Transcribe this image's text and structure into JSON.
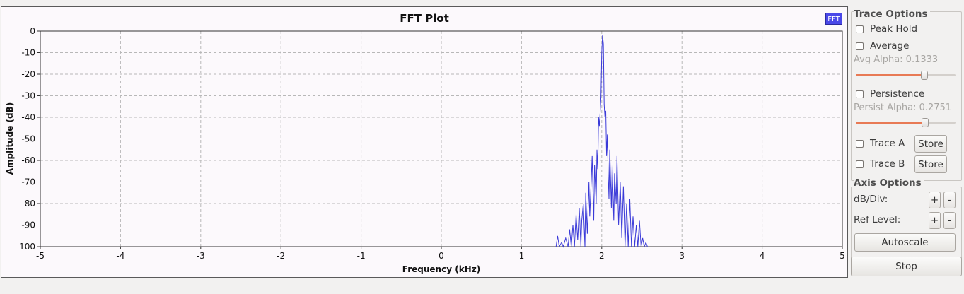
{
  "plot": {
    "title": "FFT Plot",
    "legend_chip": "FFT",
    "trace_color": "#3a3ad8",
    "chart_data": {
      "type": "line",
      "title": "FFT Plot",
      "xlabel": "Frequency (kHz)",
      "ylabel": "Amplitude (dB)",
      "xlim": [
        -5,
        5
      ],
      "ylim": [
        -100,
        0
      ],
      "x_ticks": [
        "-5",
        "-4",
        "-3",
        "-2",
        "-1",
        "0",
        "1",
        "2",
        "3",
        "4",
        "5"
      ],
      "y_ticks": [
        "0",
        "-10",
        "-20",
        "-30",
        "-40",
        "-50",
        "-60",
        "-70",
        "-80",
        "-90",
        "-100"
      ],
      "grid": true,
      "series": [
        {
          "name": "FFT",
          "x": [
            1.43,
            1.45,
            1.47,
            1.5,
            1.52,
            1.55,
            1.58,
            1.6,
            1.62,
            1.64,
            1.66,
            1.68,
            1.7,
            1.72,
            1.74,
            1.75,
            1.77,
            1.79,
            1.8,
            1.82,
            1.84,
            1.85,
            1.87,
            1.88,
            1.9,
            1.91,
            1.93,
            1.94,
            1.95,
            1.96,
            1.97,
            1.98,
            1.99,
            2.0,
            2.01,
            2.02,
            2.03,
            2.04,
            2.05,
            2.06,
            2.07,
            2.08,
            2.09,
            2.1,
            2.12,
            2.13,
            2.15,
            2.16,
            2.18,
            2.19,
            2.21,
            2.23,
            2.25,
            2.27,
            2.29,
            2.31,
            2.33,
            2.35,
            2.37,
            2.39,
            2.41,
            2.43,
            2.45,
            2.47,
            2.49,
            2.51,
            2.53,
            2.55,
            2.57
          ],
          "y": [
            -100,
            -95,
            -100,
            -98,
            -100,
            -96,
            -100,
            -92,
            -100,
            -90,
            -100,
            -85,
            -97,
            -82,
            -100,
            -88,
            -80,
            -100,
            -75,
            -94,
            -70,
            -86,
            -68,
            -58,
            -88,
            -62,
            -80,
            -55,
            -64,
            -40,
            -44,
            -38,
            -30,
            -10,
            -2,
            -6,
            -34,
            -40,
            -37,
            -58,
            -48,
            -66,
            -78,
            -55,
            -82,
            -62,
            -88,
            -66,
            -80,
            -58,
            -90,
            -70,
            -96,
            -72,
            -100,
            -80,
            -100,
            -78,
            -100,
            -86,
            -100,
            -90,
            -100,
            -88,
            -100,
            -96,
            -100,
            -98,
            -100
          ]
        }
      ]
    }
  },
  "sidebar": {
    "trace_options_title": "Trace Options",
    "peak_hold_label": "Peak Hold",
    "average_label": "Average",
    "avg_alpha_label": "Avg Alpha: 0.1333",
    "avg_alpha_value": 0.68,
    "persistence_label": "Persistence",
    "persist_alpha_label": "Persist Alpha: 0.2751",
    "persist_alpha_value": 0.69,
    "trace_a_label": "Trace A",
    "trace_b_label": "Trace B",
    "store_label": "Store",
    "axis_options_title": "Axis Options",
    "db_div_label": "dB/Div:",
    "ref_level_label": "Ref Level:",
    "plus_label": "+",
    "minus_label": "-",
    "autoscale_label": "Autoscale",
    "stop_label": "Stop"
  }
}
